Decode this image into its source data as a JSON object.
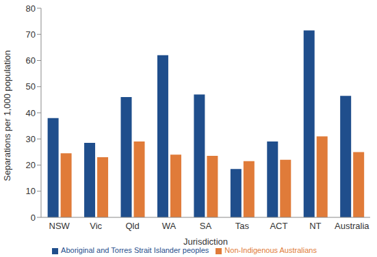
{
  "chart_data": {
    "type": "bar",
    "x_label": "Jurisdiction",
    "y_label": "Separations per 1,000 population",
    "categories": [
      "NSW",
      "Vic",
      "Qld",
      "WA",
      "SA",
      "Tas",
      "ACT",
      "NT",
      "Australia"
    ],
    "series": [
      {
        "name": "Aboriginal and Torres Strait Islander peoples",
        "color": "#1f4e8c",
        "values": [
          38,
          28.5,
          46,
          62,
          47,
          18.5,
          29,
          71.5,
          46.5
        ]
      },
      {
        "name": "Non-Indigenous Australians",
        "color": "#e07b39",
        "values": [
          24.5,
          23,
          29,
          24,
          23.5,
          21.5,
          22,
          31,
          25
        ]
      }
    ],
    "ylim": [
      0,
      80
    ],
    "yticks": [
      0,
      10,
      20,
      30,
      40,
      50,
      60,
      70,
      80
    ],
    "grid": false,
    "legend": "bottom"
  }
}
